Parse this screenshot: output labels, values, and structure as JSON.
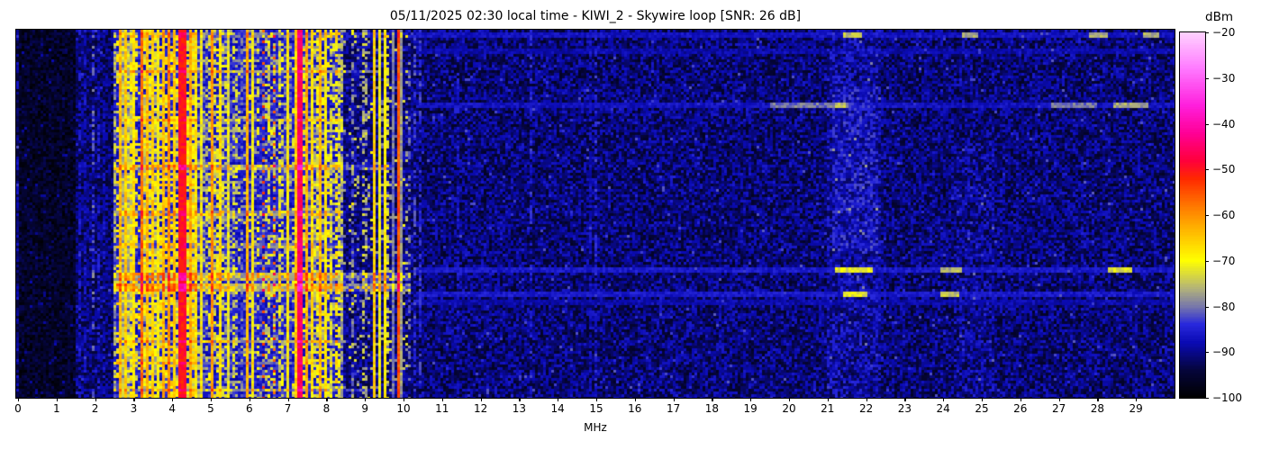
{
  "title": "05/11/2025 02:30 local time - KIWI_2 - Skywire loop [SNR: 26 dB]",
  "station": "KIWI_2",
  "antenna": "Skywire loop",
  "snr_db": 26,
  "timestamp": "05/11/2025 02:30 local time",
  "axis": {
    "xlabel": "MHz",
    "x_ticks": [
      0,
      1,
      2,
      3,
      4,
      5,
      6,
      7,
      8,
      9,
      10,
      11,
      12,
      13,
      14,
      15,
      16,
      17,
      18,
      19,
      20,
      21,
      22,
      23,
      24,
      25,
      26,
      27,
      28,
      29
    ]
  },
  "colorbar": {
    "label": "dBm",
    "ticks": [
      -20,
      -30,
      -40,
      -50,
      -60,
      -70,
      -80,
      -90,
      -100
    ]
  },
  "chart_data": {
    "type": "heatmap",
    "subtype": "rf-waterfall-spectrogram",
    "title": "05/11/2025 02:30 local time - KIWI_2 - Skywire loop [SNR: 26 dB]",
    "xlabel": "MHz",
    "x_range": [
      0,
      30
    ],
    "x_ticks": [
      0,
      1,
      2,
      3,
      4,
      5,
      6,
      7,
      8,
      9,
      10,
      11,
      12,
      13,
      14,
      15,
      16,
      17,
      18,
      19,
      20,
      21,
      22,
      23,
      24,
      25,
      26,
      27,
      28,
      29
    ],
    "y_axis": {
      "meaning": "time",
      "ticks": []
    },
    "value_axis": {
      "label": "dBm",
      "range": [
        -100,
        -20
      ],
      "ticks": [
        -20,
        -30,
        -40,
        -50,
        -60,
        -70,
        -80,
        -90,
        -100
      ]
    },
    "legend_position": "right-colorbar",
    "grid": false,
    "colormap_stops": [
      [
        -100,
        "#000000"
      ],
      [
        -94,
        "#05053c"
      ],
      [
        -88,
        "#0a0ab4"
      ],
      [
        -84,
        "#2828dc"
      ],
      [
        -80,
        "#7878aa"
      ],
      [
        -76,
        "#b4b478"
      ],
      [
        -70,
        "#ffff00"
      ],
      [
        -64,
        "#ffbe00"
      ],
      [
        -58,
        "#ff7800"
      ],
      [
        -52,
        "#ff2800"
      ],
      [
        -48,
        "#ff003c"
      ],
      [
        -42,
        "#ff0096"
      ],
      [
        -36,
        "#ff1edc"
      ],
      [
        -28,
        "#ff78ff"
      ],
      [
        -20,
        "#ffd2ff"
      ]
    ],
    "noise_regions": [
      {
        "f0": 0.0,
        "f1": 1.5,
        "base": -99.5,
        "spread": 7
      },
      {
        "f0": 1.5,
        "f1": 2.5,
        "base": -96,
        "spread": 9
      },
      {
        "f0": 2.5,
        "f1": 8.4,
        "base": -89,
        "spread": 7
      },
      {
        "f0": 8.4,
        "f1": 10.3,
        "base": -95,
        "spread": 9
      },
      {
        "f0": 10.3,
        "f1": 30.1,
        "base": -96.5,
        "spread": 10.5
      }
    ],
    "activity_bands": [
      {
        "f0": 2.5,
        "f1": 2.7,
        "prob": 0.45,
        "level": -75,
        "jitter": 10
      },
      {
        "f0": 2.7,
        "f1": 4.55,
        "prob": 0.62,
        "level": -73,
        "jitter": 11
      },
      {
        "f0": 4.55,
        "f1": 5.0,
        "prob": 0.4,
        "level": -75,
        "jitter": 10
      },
      {
        "f0": 5.0,
        "f1": 5.4,
        "prob": 0.45,
        "level": -74,
        "jitter": 10
      },
      {
        "f0": 5.4,
        "f1": 6.15,
        "prob": 0.3,
        "level": -77,
        "jitter": 9
      },
      {
        "f0": 6.15,
        "f1": 7.2,
        "prob": 0.28,
        "level": -77,
        "jitter": 9
      },
      {
        "f0": 7.2,
        "f1": 8.4,
        "prob": 0.48,
        "level": -74,
        "jitter": 10
      },
      {
        "f0": 8.35,
        "f1": 9.2,
        "prob": 0.07,
        "level": -76,
        "jitter": 8
      },
      {
        "f0": 9.2,
        "f1": 10.1,
        "prob": 0.1,
        "level": -80,
        "jitter": 8
      }
    ],
    "carriers": [
      {
        "f": 1.57,
        "hw": 0.02,
        "level": -86,
        "jit": 4,
        "dash": 1
      },
      {
        "f": 1.76,
        "hw": 0.02,
        "level": -87,
        "jit": 4,
        "dash": 1
      },
      {
        "f": 1.94,
        "hw": 0.02,
        "level": -82,
        "jit": 8,
        "dash": 1
      },
      {
        "f": 2.06,
        "hw": 0.02,
        "level": -86,
        "jit": 5,
        "dash": 1
      },
      {
        "f": 2.2,
        "hw": 0.02,
        "level": -87,
        "jit": 4,
        "dash": 1
      },
      {
        "f": 2.62,
        "hw": 0.03,
        "level": -64,
        "jit": 7,
        "dash": 0
      },
      {
        "f": 2.8,
        "hw": 0.03,
        "level": -66,
        "jit": 7,
        "dash": 0
      },
      {
        "f": 3.02,
        "hw": 0.02,
        "level": -68,
        "jit": 7,
        "dash": 0
      },
      {
        "f": 3.2,
        "hw": 0.05,
        "level": -57,
        "jit": 7,
        "dash": 0
      },
      {
        "f": 3.33,
        "hw": 0.02,
        "level": -64,
        "jit": 6,
        "dash": 0
      },
      {
        "f": 3.5,
        "hw": 0.02,
        "level": -66,
        "jit": 7,
        "dash": 0
      },
      {
        "f": 3.65,
        "hw": 0.02,
        "level": -70,
        "jit": 8,
        "dash": 0
      },
      {
        "f": 3.8,
        "hw": 0.02,
        "level": -64,
        "jit": 7,
        "dash": 0
      },
      {
        "f": 3.9,
        "hw": 0.03,
        "level": -60,
        "jit": 7,
        "dash": 0
      },
      {
        "f": 4.02,
        "hw": 0.02,
        "level": -65,
        "jit": 6,
        "dash": 0
      },
      {
        "f": 4.28,
        "hw": 0.1,
        "level": -50,
        "jit": 5,
        "dash": 0
      },
      {
        "f": 4.47,
        "hw": 0.02,
        "level": -63,
        "jit": 7,
        "dash": 0
      },
      {
        "f": 4.61,
        "hw": 0.02,
        "level": -68,
        "jit": 7,
        "dash": 0
      },
      {
        "f": 4.78,
        "hw": 0.02,
        "level": -71,
        "jit": 8,
        "dash": 0
      },
      {
        "f": 5.06,
        "hw": 0.03,
        "level": -61,
        "jit": 7,
        "dash": 0
      },
      {
        "f": 5.26,
        "hw": 0.02,
        "level": -68,
        "jit": 7,
        "dash": 0
      },
      {
        "f": 5.45,
        "hw": 0.02,
        "level": -72,
        "jit": 8,
        "dash": 0
      },
      {
        "f": 5.62,
        "hw": 0.02,
        "level": -74,
        "jit": 8,
        "dash": 1
      },
      {
        "f": 5.95,
        "hw": 0.05,
        "level": -63,
        "jit": 6,
        "dash": 0
      },
      {
        "f": 6.07,
        "hw": 0.02,
        "level": -70,
        "jit": 7,
        "dash": 0
      },
      {
        "f": 6.35,
        "hw": 0.025,
        "level": -55,
        "jit": 6,
        "dash": 2
      },
      {
        "f": 6.52,
        "hw": 0.02,
        "level": -74,
        "jit": 7,
        "dash": 1
      },
      {
        "f": 6.68,
        "hw": 0.025,
        "level": -55,
        "jit": 6,
        "dash": 2
      },
      {
        "f": 6.8,
        "hw": 0.02,
        "level": -72,
        "jit": 7,
        "dash": 1
      },
      {
        "f": 7.0,
        "hw": 0.02,
        "level": -69,
        "jit": 7,
        "dash": 0
      },
      {
        "f": 7.18,
        "hw": 0.02,
        "level": -66,
        "jit": 7,
        "dash": 0
      },
      {
        "f": 7.33,
        "hw": 0.06,
        "level": -46,
        "jit": 5,
        "dash": 0
      },
      {
        "f": 7.5,
        "hw": 0.02,
        "level": -63,
        "jit": 7,
        "dash": 0
      },
      {
        "f": 7.65,
        "hw": 0.02,
        "level": -68,
        "jit": 7,
        "dash": 0
      },
      {
        "f": 7.85,
        "hw": 0.03,
        "level": -64,
        "jit": 7,
        "dash": 0
      },
      {
        "f": 8.0,
        "hw": 0.02,
        "level": -69,
        "jit": 7,
        "dash": 0
      },
      {
        "f": 8.12,
        "hw": 0.02,
        "level": -72,
        "jit": 8,
        "dash": 1
      },
      {
        "f": 8.3,
        "hw": 0.02,
        "level": -74,
        "jit": 8,
        "dash": 1
      },
      {
        "f": 8.7,
        "hw": 0.02,
        "level": -80,
        "jit": 8,
        "dash": 1
      },
      {
        "f": 8.97,
        "hw": 0.02,
        "level": -75,
        "jit": 7,
        "dash": 1
      },
      {
        "f": 9.05,
        "hw": 0.02,
        "level": -78,
        "jit": 6,
        "dash": 1
      },
      {
        "f": 9.23,
        "hw": 0.03,
        "level": -66,
        "jit": 6,
        "dash": 0
      },
      {
        "f": 9.41,
        "hw": 0.025,
        "level": -71,
        "jit": 5,
        "dash": 0
      },
      {
        "f": 9.51,
        "hw": 0.025,
        "level": -69,
        "jit": 5,
        "dash": 0
      },
      {
        "f": 9.62,
        "hw": 0.02,
        "level": -73,
        "jit": 6,
        "dash": 1
      },
      {
        "f": 9.73,
        "hw": 0.02,
        "level": -80,
        "jit": 5,
        "dash": 0
      },
      {
        "f": 9.85,
        "hw": 0.04,
        "level": -55,
        "jit": 6,
        "dash": 0
      },
      {
        "f": 9.97,
        "hw": 0.02,
        "level": -78,
        "jit": 5,
        "dash": 0
      },
      {
        "f": 10.12,
        "hw": 0.02,
        "level": -81,
        "jit": 5,
        "dash": 1
      },
      {
        "f": 10.28,
        "hw": 0.02,
        "level": -83,
        "jit": 5,
        "dash": 1
      },
      {
        "f": 10.45,
        "hw": 0.02,
        "level": -84,
        "jit": 5,
        "dash": 1
      },
      {
        "f": 11.4,
        "hw": 0.02,
        "level": -86,
        "jit": 4,
        "dash": 1
      },
      {
        "f": 13.3,
        "hw": 0.02,
        "level": -85,
        "jit": 5,
        "dash": 1
      },
      {
        "f": 14.85,
        "hw": 0.02,
        "level": -87,
        "jit": 4,
        "dash": 1
      },
      {
        "f": 15.0,
        "hw": 0.02,
        "level": -85,
        "jit": 5,
        "dash": 1
      }
    ],
    "freq_patches": [
      {
        "f0": 21.0,
        "f1": 22.4,
        "t0": 0.0,
        "t1": 1.0,
        "boost": 2.2
      },
      {
        "f0": 21.1,
        "f1": 22.3,
        "t0": 0.15,
        "t1": 0.6,
        "boost": 1.8
      },
      {
        "f0": 24.3,
        "f1": 25.3,
        "t0": 0.3,
        "t1": 1.0,
        "boost": 1.2
      }
    ],
    "time_streaks": [
      {
        "t": 0.01,
        "ht": 0.006,
        "f0": 10.3,
        "f1": 30,
        "mode": "set",
        "val": -87,
        "segs": [
          [
            21.4,
            21.9,
            -75
          ],
          [
            24.5,
            24.9,
            -77
          ],
          [
            27.8,
            28.3,
            -76
          ],
          [
            29.2,
            29.6,
            -76
          ]
        ]
      },
      {
        "t": 0.01,
        "ht": 0.006,
        "f0": 2.5,
        "f1": 10.3,
        "mode": "boost",
        "val": 4
      },
      {
        "t": 0.052,
        "ht": 0.008,
        "f0": 10.3,
        "f1": 30,
        "mode": "set",
        "val": -89
      },
      {
        "t": 0.11,
        "ht": 0.006,
        "f0": 2.5,
        "f1": 9.2,
        "mode": "boost",
        "val": 7
      },
      {
        "t": 0.198,
        "ht": 0.007,
        "f0": 10.3,
        "f1": 30,
        "mode": "set",
        "val": -87,
        "segs": [
          [
            19.5,
            21.6,
            -80
          ],
          [
            21.2,
            21.5,
            -75
          ],
          [
            26.8,
            28.0,
            -80
          ],
          [
            28.4,
            29.3,
            -77
          ]
        ]
      },
      {
        "t": 0.24,
        "ht": 0.006,
        "f0": 2.5,
        "f1": 8.6,
        "mode": "boost",
        "val": 5
      },
      {
        "t": 0.366,
        "ht": 0.007,
        "f0": 2.5,
        "f1": 9.7,
        "mode": "boost",
        "val": 8
      },
      {
        "t": 0.495,
        "ht": 0.006,
        "f0": 2.5,
        "f1": 8.5,
        "mode": "boost",
        "val": 6
      },
      {
        "t": 0.58,
        "ht": 0.005,
        "f0": 2.5,
        "f1": 8.5,
        "mode": "boost",
        "val": 4
      },
      {
        "t": 0.649,
        "ht": 0.007,
        "f0": 10.3,
        "f1": 30,
        "mode": "set",
        "val": -86,
        "segs": [
          [
            21.2,
            22.2,
            -72
          ],
          [
            23.9,
            24.5,
            -76
          ],
          [
            28.3,
            28.9,
            -73
          ]
        ]
      },
      {
        "t": 0.665,
        "ht": 0.012,
        "f0": 2.5,
        "f1": 10.2,
        "mode": "boost",
        "val": 9
      },
      {
        "t": 0.695,
        "ht": 0.012,
        "f0": 2.5,
        "f1": 10.2,
        "mode": "boost",
        "val": 10
      },
      {
        "t": 0.715,
        "ht": 0.007,
        "f0": 10.3,
        "f1": 30,
        "mode": "set",
        "val": -86,
        "segs": [
          [
            21.4,
            22.0,
            -72
          ],
          [
            23.9,
            24.4,
            -75
          ]
        ]
      },
      {
        "t": 0.735,
        "ht": 0.006,
        "f0": 10.3,
        "f1": 30,
        "mode": "set",
        "val": -89
      },
      {
        "t": 0.84,
        "ht": 0.006,
        "f0": 2.5,
        "f1": 8.6,
        "mode": "boost",
        "val": 7
      },
      {
        "t": 0.9,
        "ht": 0.005,
        "f0": 2.5,
        "f1": 8.5,
        "mode": "boost",
        "val": 4
      },
      {
        "t": 0.97,
        "ht": 0.006,
        "f0": 2.5,
        "f1": 9.0,
        "mode": "boost",
        "val": 6
      }
    ]
  }
}
